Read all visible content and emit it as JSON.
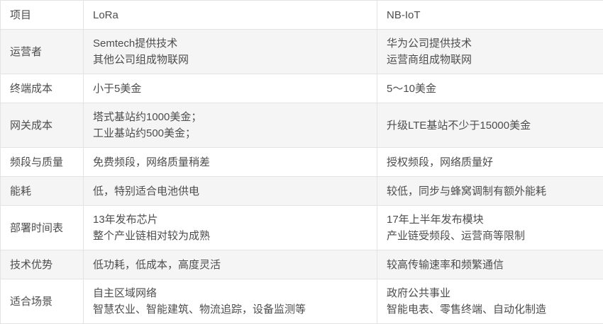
{
  "table": {
    "columns": [
      "项目",
      "LoRa",
      "NB-IoT"
    ],
    "rows": [
      {
        "label": "运营者",
        "lora": [
          "Semtech提供技术",
          "其他公司组成物联网"
        ],
        "nbiot": [
          "华为公司提供技术",
          "运营商组成物联网"
        ]
      },
      {
        "label": "终端成本",
        "lora": [
          "小于5美金"
        ],
        "nbiot": [
          "5～10美金"
        ]
      },
      {
        "label": "网关成本",
        "lora": [
          "塔式基站约1000美金；",
          "工业基站约500美金；"
        ],
        "nbiot": [
          "升级LTE基站不少于15000美金"
        ]
      },
      {
        "label": "频段与质量",
        "lora": [
          "免费频段，网络质量稍差"
        ],
        "nbiot": [
          "授权频段，网络质量好"
        ]
      },
      {
        "label": "能耗",
        "lora": [
          "低，特别适合电池供电"
        ],
        "nbiot": [
          "较低，同步与蜂窝调制有额外能耗"
        ]
      },
      {
        "label": "部署时间表",
        "lora": [
          "13年发布芯片",
          "整个产业链相对较为成熟"
        ],
        "nbiot": [
          "17年上半年发布模块",
          "产业链受频段、运营商等限制"
        ]
      },
      {
        "label": "技术优势",
        "lora": [
          "低功耗，低成本，高度灵活"
        ],
        "nbiot": [
          "较高传输速率和频繁通信"
        ]
      },
      {
        "label": "适合场景",
        "lora": [
          "自主区域网络",
          "智慧农业、智能建筑、物流追踪，设备监测等"
        ],
        "nbiot": [
          "政府公共事业",
          "智能电表、零售终端、自动化制造"
        ]
      }
    ],
    "colors": {
      "stripe": "#f5f5f5",
      "border": "#e3e3e3",
      "text": "#4d4d4d",
      "background": "#ffffff"
    }
  }
}
